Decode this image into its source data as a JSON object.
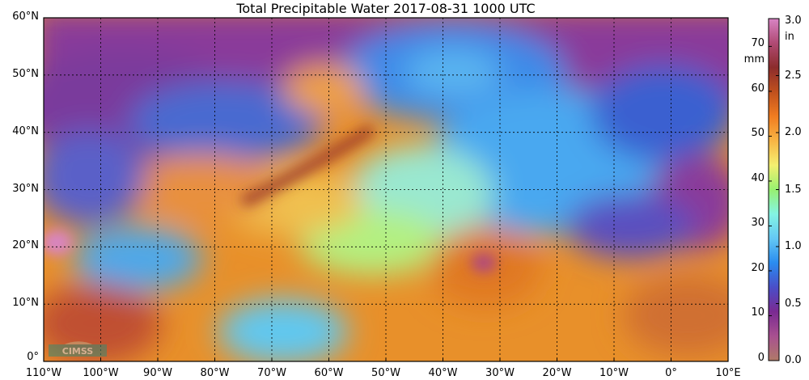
{
  "title": "Total Precipitable Water  2017-08-31 1000 UTC",
  "map": {
    "lon_range": [
      -110,
      10
    ],
    "lat_range": [
      0,
      60
    ],
    "grid": "dotted every 10 degrees",
    "lat_labels": [
      "0°",
      "10°N",
      "20°N",
      "30°N",
      "40°N",
      "50°N",
      "60°N"
    ],
    "lon_labels": [
      "110°W",
      "100°W",
      "90°W",
      "80°W",
      "70°W",
      "60°W",
      "50°W",
      "40°W",
      "30°W",
      "20°W",
      "10°W",
      "0°",
      "10°E"
    ],
    "logo": "CIMSS"
  },
  "colorbar": {
    "mm_unit": "mm",
    "in_unit": "in",
    "mm_ticks": [
      "0",
      "10",
      "20",
      "30",
      "40",
      "50",
      "60",
      "70"
    ],
    "in_ticks": [
      "0.0",
      "0.5",
      "1.0",
      "1.5",
      "2.0",
      "2.5",
      "3.0"
    ],
    "range_mm": [
      0,
      76.2
    ],
    "colors": [
      "#b07a68",
      "#a85090",
      "#7a2a92",
      "#4a4ec8",
      "#2a8cf0",
      "#64c8f4",
      "#84f4e4",
      "#98f070",
      "#f4f070",
      "#f8b444",
      "#f07c20",
      "#c0501e",
      "#8c2c2c",
      "#b04a74",
      "#d884c4"
    ]
  }
}
